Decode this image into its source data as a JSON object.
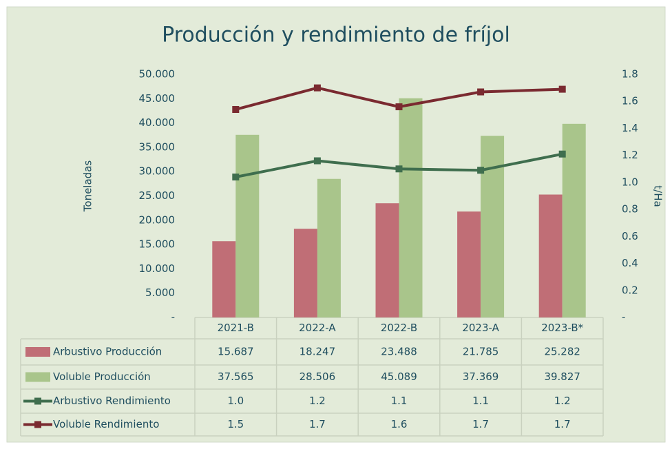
{
  "chart_data": {
    "type": "combo",
    "title": "Producción y rendimiento de fríjol",
    "y_label": "Toneladas",
    "y2_label": "t/Ha",
    "categories": [
      "2021-B",
      "2022-A",
      "2022-B",
      "2023-A",
      "2023-B*"
    ],
    "ylim": [
      0,
      50000
    ],
    "yticks": [
      {
        "value": 0,
        "label": "-"
      },
      {
        "value": 5000,
        "label": "5.000"
      },
      {
        "value": 10000,
        "label": "10.000"
      },
      {
        "value": 15000,
        "label": "15.000"
      },
      {
        "value": 20000,
        "label": "20.000"
      },
      {
        "value": 25000,
        "label": "25.000"
      },
      {
        "value": 30000,
        "label": "30.000"
      },
      {
        "value": 35000,
        "label": "35.000"
      },
      {
        "value": 40000,
        "label": "40.000"
      },
      {
        "value": 45000,
        "label": "45.000"
      },
      {
        "value": 50000,
        "label": "50.000"
      }
    ],
    "y2lim": [
      0,
      1.8
    ],
    "y2ticks": [
      {
        "value": 0,
        "label": "-"
      },
      0.2,
      0.4,
      0.6,
      0.8,
      {
        "value": 1,
        "label": "1.0"
      },
      1.2,
      1.4,
      1.6,
      1.8
    ],
    "series": [
      {
        "name": "Arbustivo Producción",
        "type": "bar",
        "color": "#c06e76",
        "values": [
          15687,
          18247,
          23488,
          21785,
          25282
        ],
        "value_labels": [
          "15.687",
          "18.247",
          "23.488",
          "21.785",
          "25.282"
        ]
      },
      {
        "name": "Voluble Producción",
        "type": "bar",
        "color": "#a9c58b",
        "values": [
          37565,
          28506,
          45089,
          37369,
          39827
        ],
        "value_labels": [
          "37.565",
          "28.506",
          "45.089",
          "37.369",
          "39.827"
        ]
      },
      {
        "name": "Arbustivo Rendimiento",
        "type": "line",
        "axis": "y2",
        "color": "#3f6e4e",
        "values": [
          1.04,
          1.16,
          1.1,
          1.09,
          1.21
        ],
        "value_labels": [
          "1.0",
          "1.2",
          "1.1",
          "1.1",
          "1.2"
        ]
      },
      {
        "name": "Voluble Rendimiento",
        "type": "line",
        "axis": "y2",
        "color": "#7a2a30",
        "values": [
          1.54,
          1.7,
          1.56,
          1.67,
          1.69
        ],
        "value_labels": [
          "1.5",
          "1.7",
          "1.6",
          "1.7",
          "1.7"
        ]
      }
    ]
  }
}
